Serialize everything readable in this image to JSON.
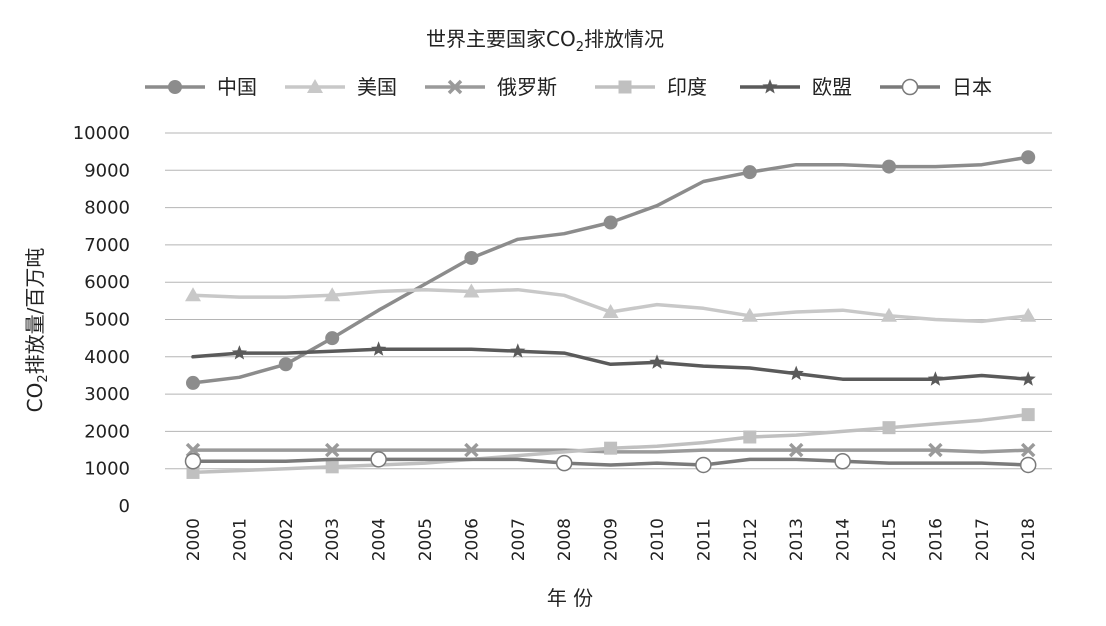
{
  "chart_data": {
    "type": "line",
    "title_prefix": "世界主要国家CO",
    "title_sub": "2",
    "title_suffix": "排放情况",
    "xlabel": "年 份",
    "ylabel_prefix": "CO",
    "ylabel_sub": "2",
    "ylabel_suffix": "排放量/百万吨",
    "ylim": [
      0,
      10000
    ],
    "yticks": [
      0,
      1000,
      2000,
      3000,
      4000,
      5000,
      6000,
      7000,
      8000,
      9000,
      10000
    ],
    "grid": true,
    "legend_position": "top",
    "x": [
      "2000",
      "2001",
      "2002",
      "2003",
      "2004",
      "2005",
      "2006",
      "2007",
      "2008",
      "2009",
      "2010",
      "2011",
      "2012",
      "2013",
      "2014",
      "2015",
      "2016",
      "2017",
      "2018"
    ],
    "series": [
      {
        "name": "中国",
        "color": "#8c8c8c",
        "marker": "circle-filled",
        "values": [
          3300,
          3450,
          3800,
          4500,
          5250,
          5950,
          6650,
          7150,
          7300,
          7600,
          8050,
          8700,
          8950,
          9150,
          9150,
          9100,
          9100,
          9150,
          9350
        ]
      },
      {
        "name": "美国",
        "color": "#c8c8c8",
        "marker": "triangle",
        "values": [
          5650,
          5600,
          5600,
          5650,
          5750,
          5800,
          5750,
          5800,
          5650,
          5200,
          5400,
          5300,
          5100,
          5200,
          5250,
          5100,
          5000,
          4950,
          5100
        ]
      },
      {
        "name": "俄罗斯",
        "color": "#9a9a9a",
        "marker": "x",
        "values": [
          1500,
          1500,
          1500,
          1500,
          1500,
          1500,
          1500,
          1500,
          1500,
          1450,
          1450,
          1500,
          1500,
          1500,
          1500,
          1500,
          1500,
          1450,
          1500
        ]
      },
      {
        "name": "印度",
        "color": "#c0c0c0",
        "marker": "square",
        "values": [
          900,
          950,
          1000,
          1050,
          1100,
          1150,
          1250,
          1350,
          1450,
          1550,
          1600,
          1700,
          1850,
          1900,
          2000,
          2100,
          2200,
          2300,
          2450
        ]
      },
      {
        "name": "欧盟",
        "color": "#5a5a5a",
        "marker": "star",
        "values": [
          4000,
          4100,
          4100,
          4150,
          4200,
          4200,
          4200,
          4150,
          4100,
          3800,
          3850,
          3750,
          3700,
          3550,
          3400,
          3400,
          3400,
          3500,
          3400
        ]
      },
      {
        "name": "日本",
        "color": "#7a7a7a",
        "marker": "circle-open",
        "values": [
          1200,
          1200,
          1200,
          1250,
          1250,
          1250,
          1250,
          1250,
          1150,
          1100,
          1150,
          1100,
          1250,
          1250,
          1200,
          1150,
          1150,
          1150,
          1100
        ]
      }
    ],
    "marker_points": {
      "中国": [
        0,
        2,
        3,
        6,
        9,
        12,
        15,
        18
      ],
      "美国": [
        0,
        3,
        6,
        9,
        12,
        15,
        18
      ],
      "俄罗斯": [
        0,
        3,
        6,
        13,
        16,
        18
      ],
      "印度": [
        0,
        3,
        9,
        12,
        15,
        18
      ],
      "欧盟": [
        1,
        4,
        7,
        10,
        13,
        16,
        18
      ],
      "日本": [
        0,
        4,
        8,
        11,
        14,
        18
      ]
    }
  }
}
